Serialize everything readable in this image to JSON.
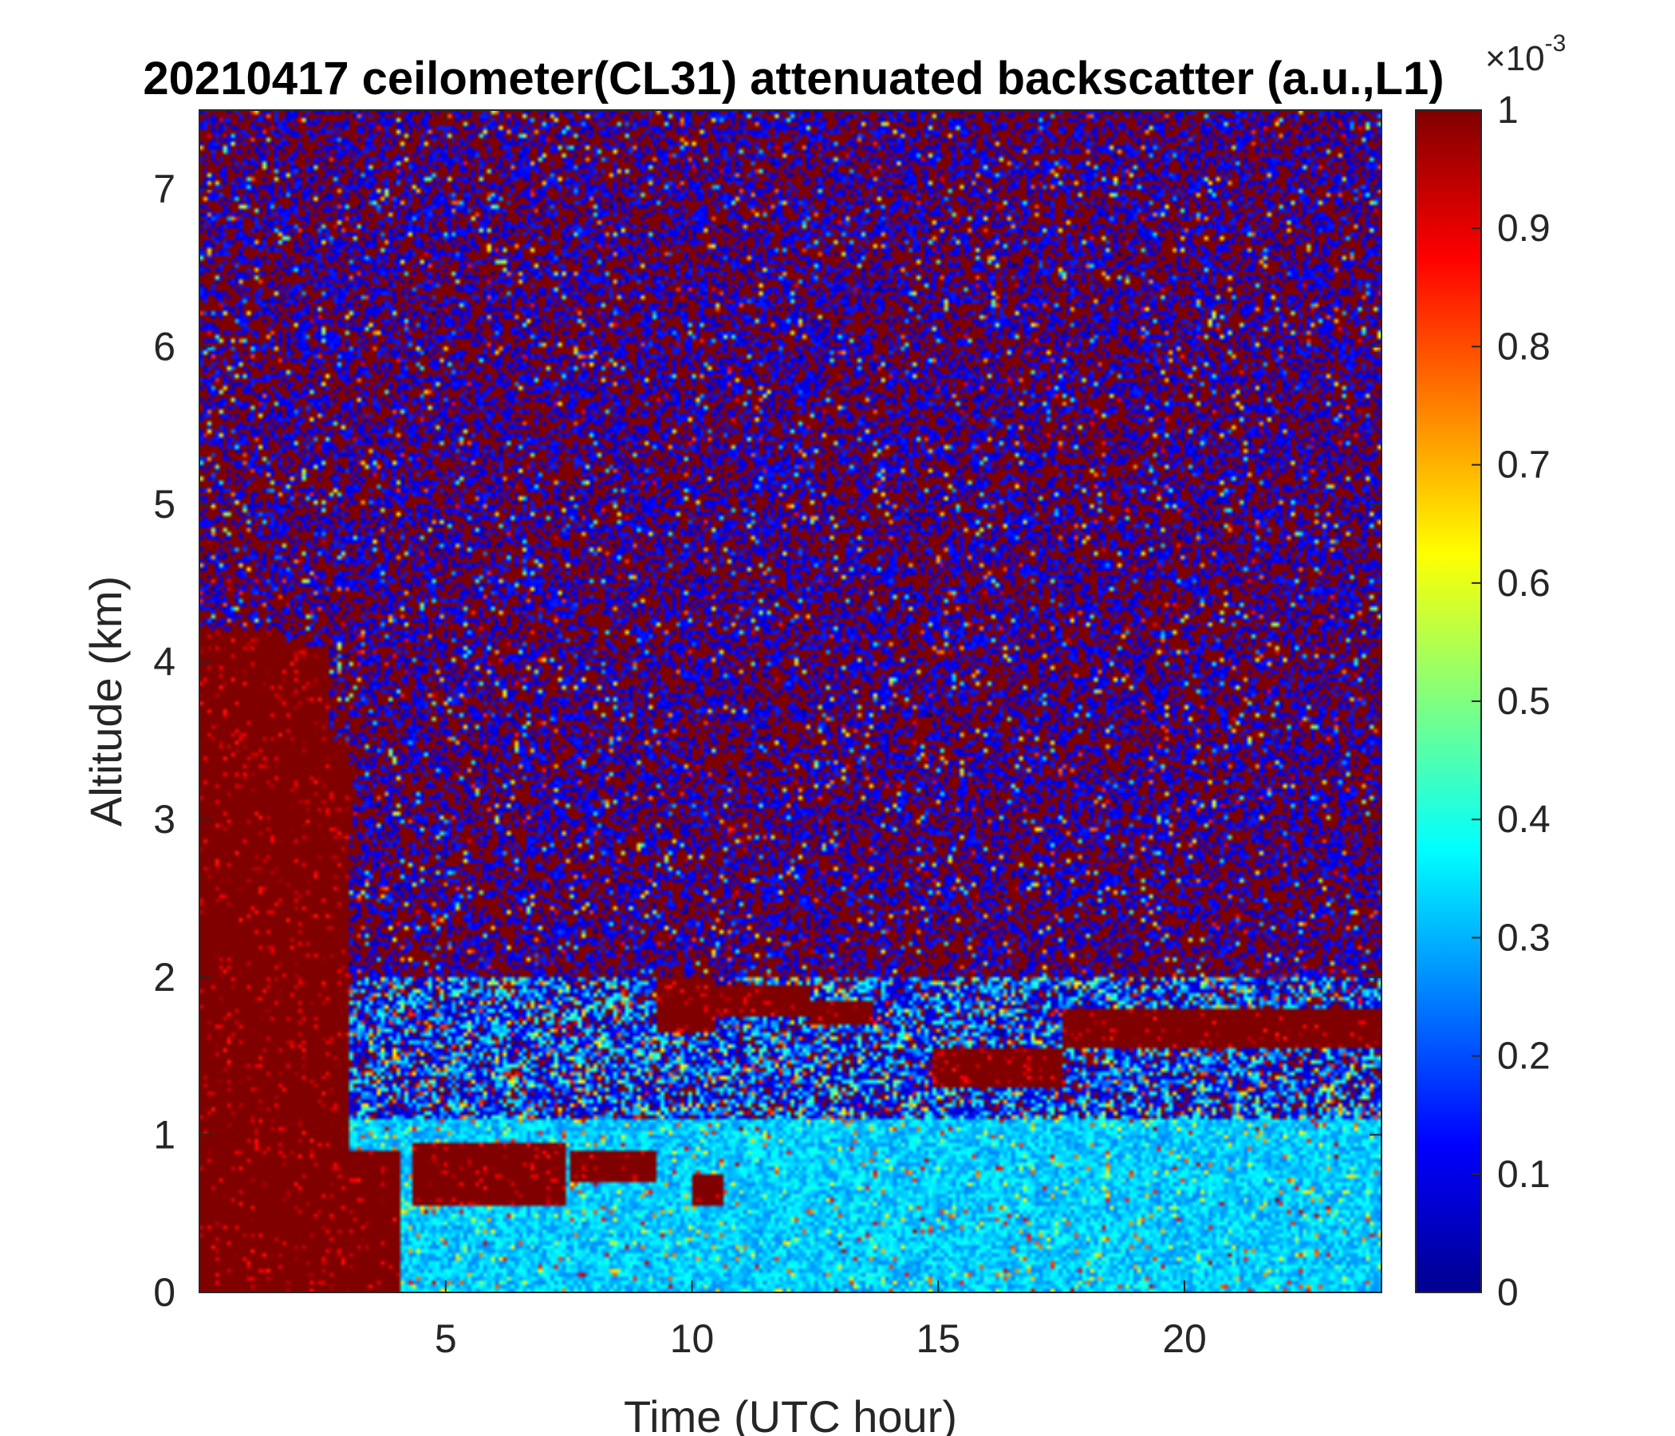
{
  "chart_data": {
    "type": "heatmap",
    "title": "20210417 ceilometer(CL31) attenuated backscatter (a.u.,L1)",
    "xlabel": "Time (UTC hour)",
    "ylabel": "Altitude (km)",
    "xlim": [
      0,
      24
    ],
    "ylim": [
      0,
      7.5
    ],
    "xticks": [
      5,
      10,
      15,
      20
    ],
    "yticks": [
      0,
      1,
      2,
      3,
      4,
      5,
      6,
      7
    ],
    "colorbar": {
      "colormap": "jet",
      "range": [
        0,
        0.001
      ],
      "ticks": [
        0,
        0.1,
        0.2,
        0.3,
        0.4,
        0.5,
        0.6,
        0.7,
        0.8,
        0.9,
        1
      ],
      "tick_labels": [
        "0",
        "0.1",
        "0.2",
        "0.3",
        "0.4",
        "0.5",
        "0.6",
        "0.7",
        "0.8",
        "0.9",
        "1"
      ],
      "multiplier_base": "×10",
      "multiplier_exponent": "-3"
    },
    "features": {
      "noise_background_above_km": 2.0,
      "tall_cloud_columns": [
        {
          "x_start": 0.0,
          "x_end": 1.7,
          "top_km": 4.2
        },
        {
          "x_start": 1.7,
          "x_end": 2.6,
          "top_km": 4.1
        },
        {
          "x_start": 2.6,
          "x_end": 3.0,
          "top_km": 3.5
        }
      ],
      "low_cloud_layer": [
        {
          "x_start": 3.0,
          "x_end": 4.1,
          "base_km": 0.0,
          "top_km": 0.9
        },
        {
          "x_start": 4.3,
          "x_end": 7.4,
          "base_km": 0.55,
          "top_km": 0.95
        },
        {
          "x_start": 7.5,
          "x_end": 9.3,
          "base_km": 0.7,
          "top_km": 0.9
        },
        {
          "x_start": 10.0,
          "x_end": 10.6,
          "base_km": 0.55,
          "top_km": 0.75
        }
      ],
      "elevated_cloud_layer": [
        {
          "x_start": 9.3,
          "x_end": 10.5,
          "base_km": 1.65,
          "top_km": 2.0
        },
        {
          "x_start": 10.5,
          "x_end": 12.4,
          "base_km": 1.75,
          "top_km": 1.95
        },
        {
          "x_start": 12.4,
          "x_end": 13.7,
          "base_km": 1.7,
          "top_km": 1.85
        },
        {
          "x_start": 14.9,
          "x_end": 17.5,
          "base_km": 1.3,
          "top_km": 1.55
        },
        {
          "x_start": 17.5,
          "x_end": 24.0,
          "base_km": 1.55,
          "top_km": 1.8
        }
      ],
      "boundary_layer_top_km": 1.1
    }
  }
}
